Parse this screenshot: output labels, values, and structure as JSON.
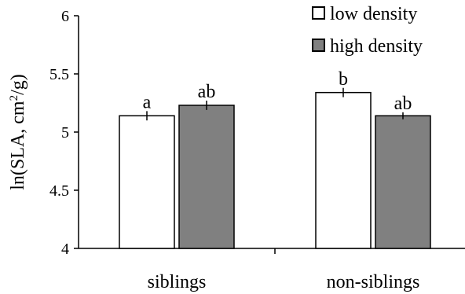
{
  "chart_data": {
    "type": "bar",
    "categories": [
      "siblings",
      "non-siblings"
    ],
    "series": [
      {
        "name": "low density",
        "values": [
          5.14,
          5.34
        ],
        "errors": [
          0.04,
          0.04
        ],
        "sig": [
          "a",
          "b"
        ],
        "color": "#ffffff"
      },
      {
        "name": "high density",
        "values": [
          5.23,
          5.14
        ],
        "errors": [
          0.04,
          0.03
        ],
        "sig": [
          "ab",
          "ab"
        ],
        "color": "#808080"
      }
    ],
    "ylabel_main": "ln(SLA, cm",
    "ylabel_sup": "2",
    "ylabel_end": "/g)",
    "ylim": [
      4,
      6
    ],
    "yticks": [
      "4",
      "4.5",
      "5",
      "5.5",
      "6"
    ],
    "legend_position": "top-right",
    "grid": false
  }
}
